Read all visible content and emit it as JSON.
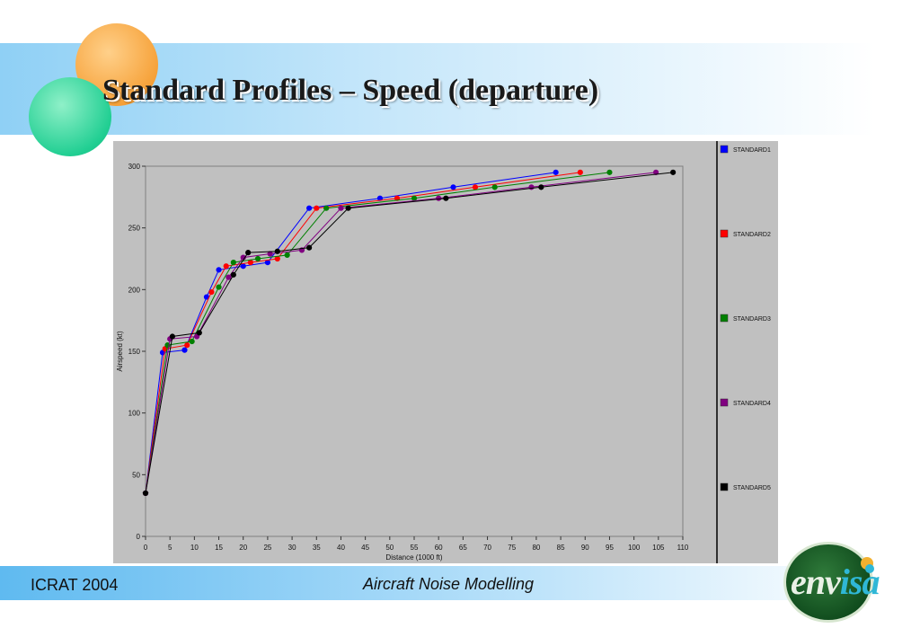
{
  "slide": {
    "title": "Standard Profiles – Speed (departure)",
    "footer_left": "ICRAT 2004",
    "footer_center": "Aircraft Noise Modelling",
    "logo_text_main": "env",
    "logo_text_accent": "isa"
  },
  "chart_data": {
    "type": "line",
    "title": "",
    "xlabel": "Distance (1000 ft)",
    "ylabel": "Airspeed (kt)",
    "xlim": [
      0,
      110
    ],
    "ylim": [
      0,
      300
    ],
    "xticks": [
      0,
      5,
      10,
      15,
      20,
      25,
      30,
      35,
      40,
      45,
      50,
      55,
      60,
      65,
      70,
      75,
      80,
      85,
      90,
      95,
      100,
      105,
      110
    ],
    "yticks": [
      0,
      50,
      100,
      150,
      200,
      250,
      300
    ],
    "grid": false,
    "legend_position": "right",
    "series": [
      {
        "name": "STANDARD1",
        "color": "#0000ff",
        "points": [
          [
            0,
            35
          ],
          [
            3.5,
            149
          ],
          [
            8,
            151
          ],
          [
            12.5,
            194
          ],
          [
            15,
            216
          ],
          [
            20,
            219
          ],
          [
            25,
            222
          ],
          [
            33.5,
            266
          ],
          [
            48,
            274
          ],
          [
            63,
            283
          ],
          [
            84,
            295
          ]
        ]
      },
      {
        "name": "STANDARD2",
        "color": "#ff0000",
        "points": [
          [
            0,
            35
          ],
          [
            4,
            152
          ],
          [
            8.5,
            155
          ],
          [
            13.5,
            198
          ],
          [
            16.5,
            219
          ],
          [
            21.5,
            222
          ],
          [
            27,
            225
          ],
          [
            35,
            266
          ],
          [
            51.5,
            274
          ],
          [
            67.5,
            283
          ],
          [
            89,
            295
          ]
        ]
      },
      {
        "name": "STANDARD3",
        "color": "#008000",
        "points": [
          [
            0,
            35
          ],
          [
            4.5,
            155
          ],
          [
            9.5,
            158
          ],
          [
            15,
            202
          ],
          [
            18,
            222
          ],
          [
            23,
            225
          ],
          [
            29,
            228
          ],
          [
            37,
            266
          ],
          [
            55,
            274
          ],
          [
            71.5,
            283
          ],
          [
            95,
            295
          ]
        ]
      },
      {
        "name": "STANDARD4",
        "color": "#800080",
        "points": [
          [
            0,
            35
          ],
          [
            5,
            160
          ],
          [
            10.5,
            162
          ],
          [
            17,
            210
          ],
          [
            20,
            226
          ],
          [
            25.5,
            229
          ],
          [
            32,
            232
          ],
          [
            40,
            266
          ],
          [
            60,
            274
          ],
          [
            79,
            283
          ],
          [
            104.5,
            295
          ]
        ]
      },
      {
        "name": "STANDARD5",
        "color": "#000000",
        "points": [
          [
            0,
            35
          ],
          [
            5.5,
            162
          ],
          [
            11,
            165
          ],
          [
            18,
            212
          ],
          [
            21,
            230
          ],
          [
            27,
            231
          ],
          [
            33.5,
            234
          ],
          [
            41.5,
            266
          ],
          [
            61.5,
            274
          ],
          [
            81,
            283
          ],
          [
            108,
            295
          ]
        ]
      }
    ]
  }
}
